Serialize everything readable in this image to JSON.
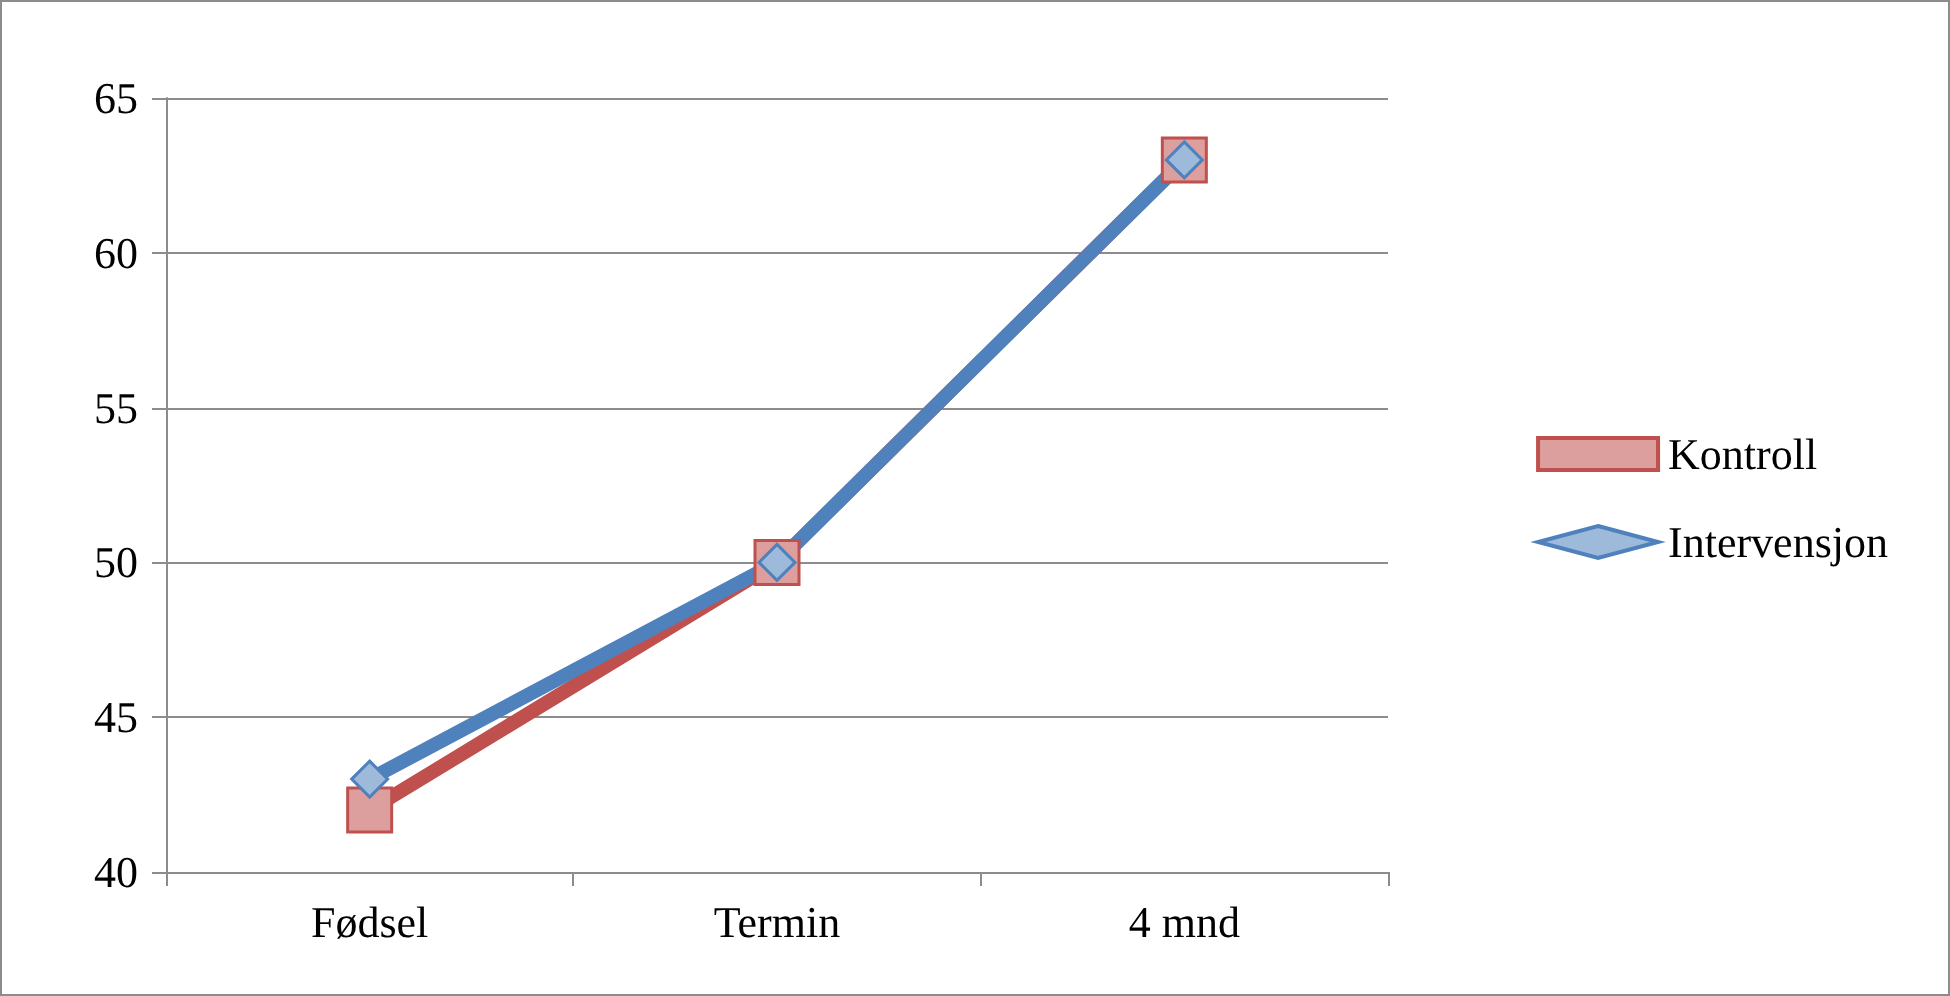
{
  "chart_data": {
    "type": "line",
    "categories": [
      "Fødsel",
      "Termin",
      "4 mnd"
    ],
    "series": [
      {
        "name": "Kontroll",
        "color": "#c0504d",
        "marker": "square",
        "values": [
          42,
          50,
          63
        ]
      },
      {
        "name": "Intervensjon",
        "color": "#4f81bd",
        "marker": "diamond",
        "values": [
          43,
          50,
          63
        ]
      }
    ],
    "ylim": [
      40,
      65
    ],
    "yticks": [
      40,
      45,
      50,
      55,
      60,
      65
    ],
    "grid": "y",
    "legend": "right"
  }
}
